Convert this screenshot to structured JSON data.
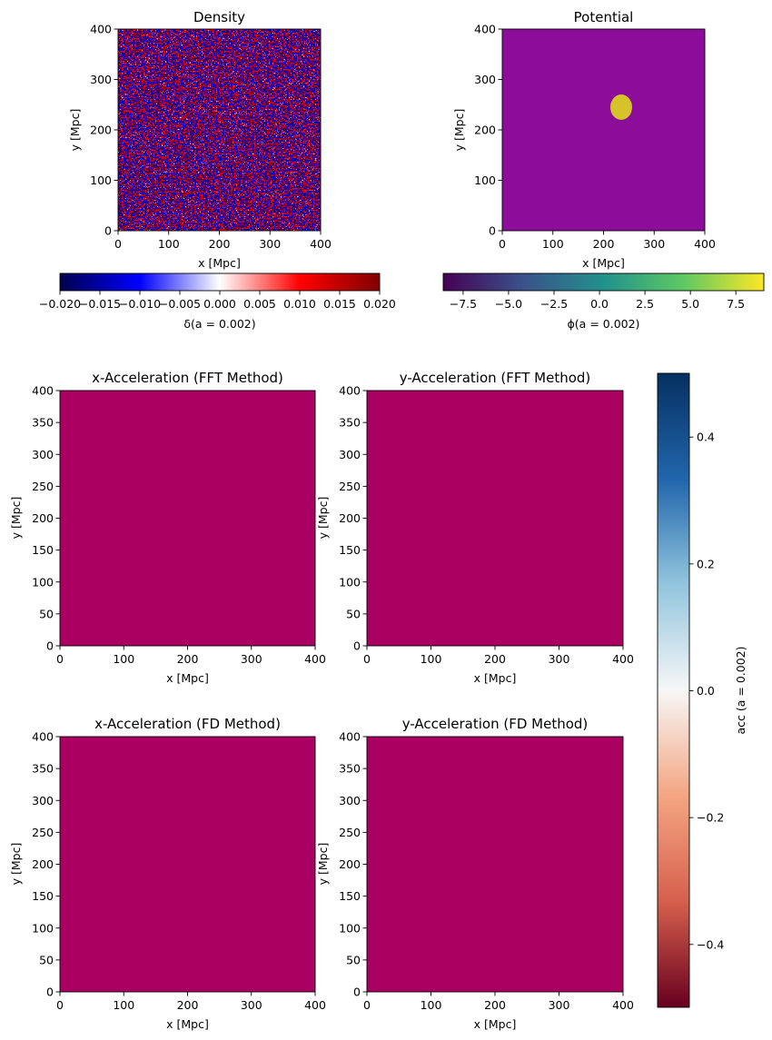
{
  "chart_data": [
    {
      "type": "heatmap",
      "title": "Density",
      "xlabel": "x [Mpc]",
      "ylabel": "y [Mpc]",
      "xlim": [
        0,
        400
      ],
      "ylim": [
        0,
        400
      ],
      "xticks": [
        "0",
        "100",
        "200",
        "300",
        "400"
      ],
      "yticks": [
        "0",
        "100",
        "200",
        "300",
        "400"
      ],
      "colormap": "seismic",
      "texture": "fine white-noise field of small red and blue speckles",
      "colorbar": {
        "orientation": "horizontal",
        "label": "δ(a = 0.002)",
        "range": [
          -0.02,
          0.02
        ],
        "ticks": [
          "−0.020",
          "−0.015",
          "−0.010",
          "−0.005",
          "0.000",
          "0.005",
          "0.010",
          "0.015",
          "0.020"
        ]
      }
    },
    {
      "type": "heatmap",
      "title": "Potential",
      "xlabel": "x [Mpc]",
      "ylabel": "y [Mpc]",
      "xlim": [
        0,
        400
      ],
      "ylim": [
        0,
        400
      ],
      "xticks": [
        "0",
        "100",
        "200",
        "300",
        "400"
      ],
      "yticks": [
        "0",
        "100",
        "200",
        "300",
        "400"
      ],
      "colormap": "viridis",
      "texture": "smooth large-scale field; bright yellow peak near (235, 245), dark purple lows near (185, 275), (390, 285), (20, 230), (30, 60)",
      "colorbar": {
        "orientation": "horizontal",
        "label": "ϕ(a = 0.002)",
        "range": [
          -8.3,
          9.2
        ],
        "ticks": [
          "−7.5",
          "−5.0",
          "−2.5",
          "0.0",
          "2.5",
          "5.0",
          "7.5"
        ]
      }
    },
    {
      "type": "heatmap",
      "title": "x-Acceleration (FFT Method)",
      "xlabel": "x [Mpc]",
      "ylabel": "y [Mpc]",
      "xlim": [
        0,
        400
      ],
      "ylim": [
        0,
        400
      ],
      "xticks": [
        "0",
        "100",
        "200",
        "300",
        "400"
      ],
      "yticks": [
        "0",
        "50",
        "100",
        "150",
        "200",
        "250",
        "300",
        "350",
        "400"
      ],
      "colormap": "RdBu",
      "texture": "filamentary field elongated vertically; dark red core near (200, 250)"
    },
    {
      "type": "heatmap",
      "title": "y-Acceleration (FFT Method)",
      "xlabel": "x [Mpc]",
      "ylabel": "y [Mpc]",
      "xlim": [
        0,
        400
      ],
      "ylim": [
        0,
        400
      ],
      "xticks": [
        "0",
        "100",
        "200",
        "300",
        "400"
      ],
      "yticks": [
        "0",
        "50",
        "100",
        "150",
        "200",
        "250",
        "300",
        "350",
        "400"
      ],
      "colormap": "RdBu",
      "texture": "filamentary field elongated horizontally; dark blue core near (120, 340)"
    },
    {
      "type": "heatmap",
      "title": "x-Acceleration (FD Method)",
      "xlabel": "x [Mpc]",
      "ylabel": "y [Mpc]",
      "xlim": [
        0,
        400
      ],
      "ylim": [
        0,
        400
      ],
      "xticks": [
        "0",
        "100",
        "200",
        "300",
        "400"
      ],
      "yticks": [
        "0",
        "50",
        "100",
        "150",
        "200",
        "250",
        "300",
        "350",
        "400"
      ],
      "colormap": "RdBu",
      "texture": "same pattern as the FFT method x-acceleration"
    },
    {
      "type": "heatmap",
      "title": "y-Acceleration (FD Method)",
      "xlabel": "x [Mpc]",
      "ylabel": "y [Mpc]",
      "xlim": [
        0,
        400
      ],
      "ylim": [
        0,
        400
      ],
      "xticks": [
        "0",
        "100",
        "200",
        "300",
        "400"
      ],
      "yticks": [
        "0",
        "50",
        "100",
        "150",
        "200",
        "250",
        "300",
        "350",
        "400"
      ],
      "colormap": "RdBu",
      "texture": "same pattern as the FFT method y-acceleration"
    },
    {
      "type": "colorbar",
      "orientation": "vertical",
      "label": "acc (a = 0.002)",
      "range": [
        -0.5,
        0.5
      ],
      "colormap": "RdBu",
      "ticks": [
        "0.4",
        "0.2",
        "0.0",
        "−0.2",
        "−0.4"
      ]
    }
  ]
}
